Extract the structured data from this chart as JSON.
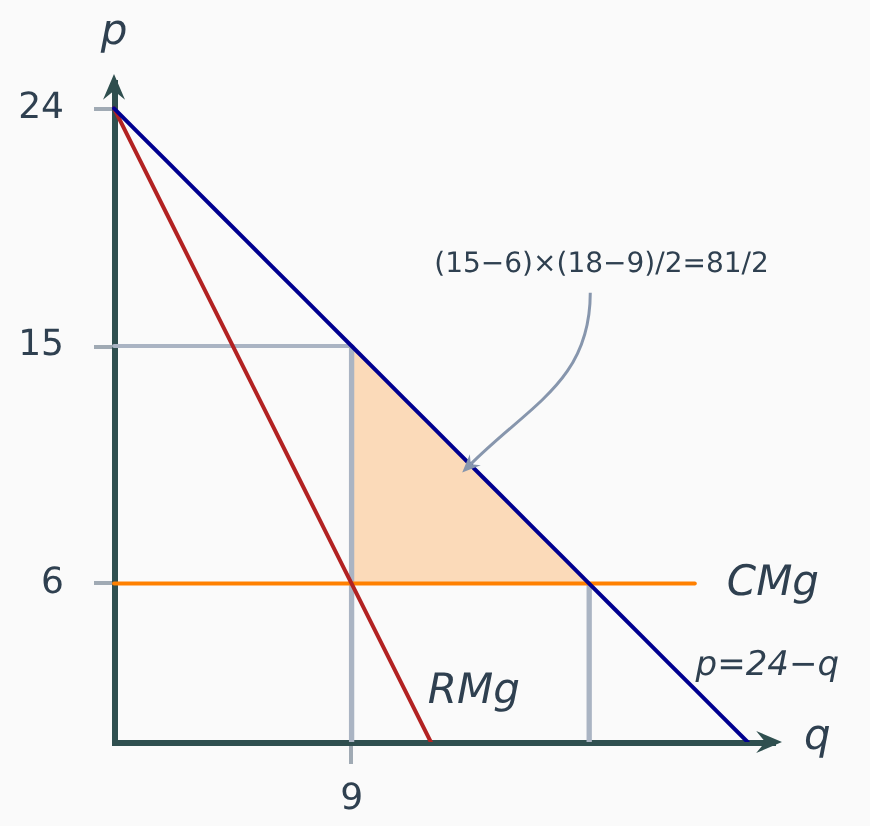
{
  "chart_data": {
    "type": "line",
    "xlabel": "q",
    "ylabel": "p",
    "categories": [
      null,
      null,
      null,
      null,
      null,
      null,
      null,
      null,
      null,
      "9",
      null,
      null,
      null,
      null,
      null,
      null,
      null,
      null,
      null,
      null,
      null,
      null,
      null,
      null,
      null,
      null
    ],
    "ylim": [
      0,
      25
    ],
    "yticks": [
      6,
      15,
      24
    ],
    "series": [
      {
        "values": [
          15,
          15,
          15,
          15,
          15,
          15,
          15,
          15,
          15,
          15,
          null,
          null,
          null,
          null,
          null,
          null,
          null,
          null,
          null,
          null,
          null,
          null,
          null,
          null,
          null,
          null
        ],
        "color": "#aab4c3"
      },
      {
        "type": "bar",
        "values": [
          null,
          null,
          null,
          null,
          null,
          null,
          null,
          null,
          null,
          15,
          null,
          null,
          null,
          null,
          null,
          null,
          null,
          null,
          6,
          null,
          null,
          null,
          null,
          null,
          null,
          null
        ],
        "color": "#aab4c3"
      },
      {
        "name": "CMg",
        "values": [
          6,
          6,
          6,
          6,
          6,
          6,
          6,
          6,
          6,
          6,
          6,
          6,
          6,
          6,
          6,
          6,
          6,
          6,
          6,
          6,
          6,
          6,
          6,
          null,
          null,
          null
        ],
        "lower": [
          null,
          null,
          null,
          null,
          null,
          null,
          null,
          null,
          null,
          6,
          6,
          6,
          6,
          6,
          6,
          6,
          6,
          6,
          6,
          null,
          null,
          null,
          null,
          null,
          null,
          null
        ],
        "upper": [
          null,
          null,
          null,
          null,
          null,
          null,
          null,
          null,
          null,
          15,
          14,
          13,
          12,
          11,
          10,
          9,
          8,
          7,
          6,
          null,
          null,
          null,
          null,
          null,
          null,
          null
        ],
        "color": "#ff8000"
      },
      {
        "name": "RMg",
        "values": [
          24,
          22,
          20,
          18,
          16,
          14,
          12,
          10,
          8,
          6,
          4,
          2,
          0,
          null,
          null,
          null,
          null,
          null,
          null,
          null,
          null,
          null,
          null,
          null,
          null,
          null
        ],
        "color": "#b22222"
      },
      {
        "name": "p=24−q",
        "values": [
          24,
          23,
          22,
          21,
          20,
          19,
          18,
          17,
          16,
          15,
          14,
          13,
          12,
          11,
          10,
          9,
          8,
          7,
          6,
          5,
          4,
          3,
          2,
          1,
          0,
          null
        ],
        "color": "#000090"
      }
    ],
    "annotations": [
      "(15−6)×(18−9)/2=81/2"
    ]
  }
}
